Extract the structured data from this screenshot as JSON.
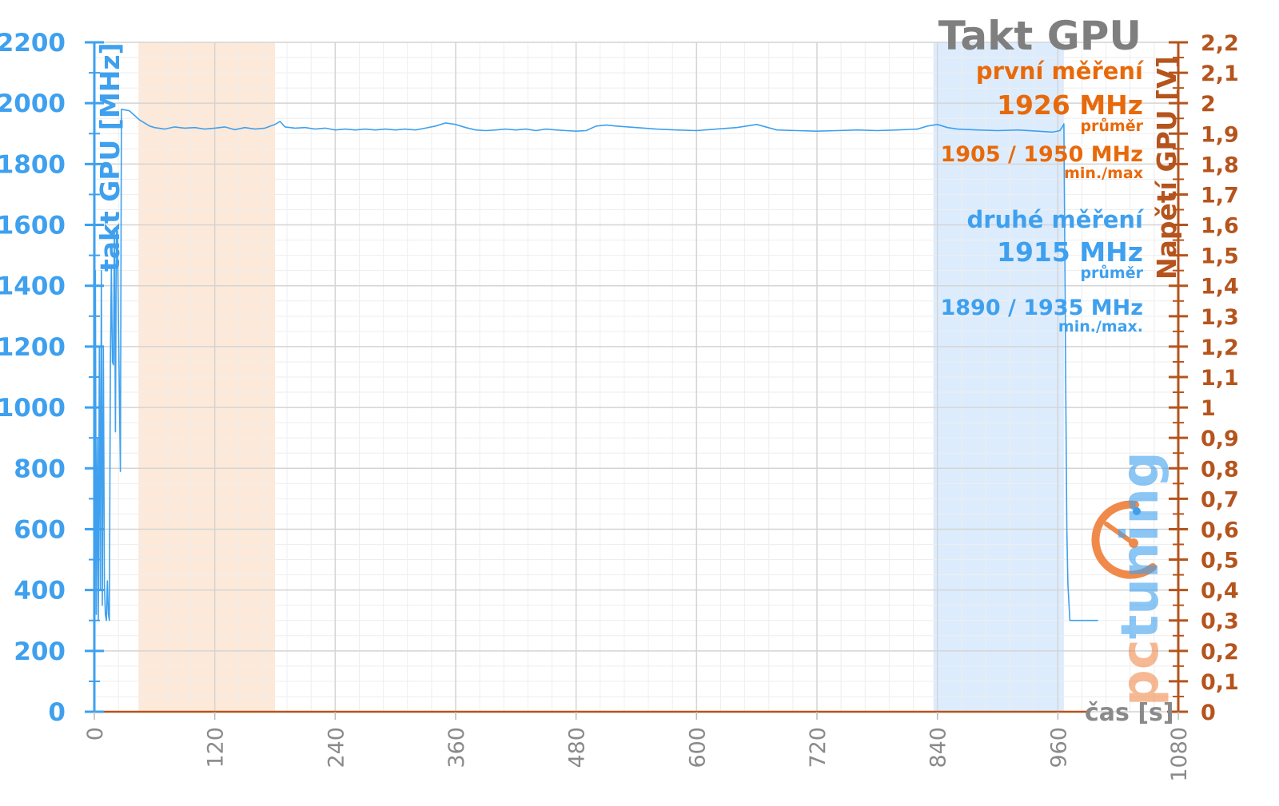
{
  "chart_data": {
    "type": "line",
    "title": "Takt GPU",
    "xlabel": "čas [s]",
    "ylabel": "takt GPU [MHz]",
    "y2label": "Napětí GPU [V]",
    "xlim": [
      0,
      1080
    ],
    "ylim": [
      0,
      2200
    ],
    "y2lim": [
      0,
      2.2
    ],
    "x_ticks": [
      "0",
      "120",
      "240",
      "360",
      "480",
      "600",
      "720",
      "840",
      "960",
      "1080"
    ],
    "y_ticks": [
      "0",
      "200",
      "400",
      "600",
      "800",
      "1000",
      "1200",
      "1400",
      "1600",
      "1800",
      "2000",
      "2200"
    ],
    "y2_ticks": [
      "0",
      "0,1",
      "0,2",
      "0,3",
      "0,4",
      "0,5",
      "0,6",
      "0,7",
      "0,8",
      "0,9",
      "1",
      "1,1",
      "1,2",
      "1,3",
      "1,4",
      "1,5",
      "1,6",
      "1,7",
      "1,8",
      "1,9",
      "2",
      "2,1",
      "2,2"
    ],
    "grid": true,
    "colors": {
      "clock": "#3ea0ee",
      "voltage": "#b5541c",
      "axis_left": "#3ea0ee",
      "axis_right": "#b5541c",
      "title": "#7f7f7f",
      "band_first": "#fde9d9",
      "band_second": "#dcecfd"
    },
    "bands": [
      {
        "series": "první měření",
        "x": [
          44,
          180
        ]
      },
      {
        "series": "druhé měření",
        "x": [
          836,
          966
        ]
      }
    ],
    "series": [
      {
        "type": "line",
        "points": [
          [
            0,
            300
          ],
          [
            1,
            1450
          ],
          [
            2,
            320
          ],
          [
            3,
            900
          ],
          [
            4,
            300
          ],
          [
            5,
            1200
          ],
          [
            6,
            400
          ],
          [
            7,
            1450
          ],
          [
            8,
            350
          ],
          [
            9,
            1200
          ],
          [
            10,
            420
          ],
          [
            11,
            320
          ],
          [
            12,
            300
          ],
          [
            13,
            430
          ],
          [
            14,
            320
          ],
          [
            15,
            300
          ],
          [
            16,
            1150
          ],
          [
            17,
            1460
          ],
          [
            18,
            1150
          ],
          [
            19,
            1140
          ],
          [
            20,
            1590
          ],
          [
            21,
            920
          ],
          [
            22,
            1580
          ],
          [
            23,
            1580
          ],
          [
            24,
            1300
          ],
          [
            26,
            790
          ],
          [
            27,
            1980
          ],
          [
            35,
            1975
          ],
          [
            40,
            1960
          ],
          [
            45,
            1945
          ],
          [
            50,
            1935
          ],
          [
            55,
            1925
          ],
          [
            60,
            1920
          ],
          [
            70,
            1915
          ],
          [
            80,
            1922
          ],
          [
            90,
            1918
          ],
          [
            100,
            1920
          ],
          [
            110,
            1915
          ],
          [
            120,
            1918
          ],
          [
            130,
            1922
          ],
          [
            140,
            1913
          ],
          [
            150,
            1920
          ],
          [
            160,
            1915
          ],
          [
            170,
            1918
          ],
          [
            180,
            1930
          ],
          [
            185,
            1940
          ],
          [
            190,
            1922
          ],
          [
            200,
            1918
          ],
          [
            210,
            1920
          ],
          [
            220,
            1915
          ],
          [
            230,
            1918
          ],
          [
            240,
            1912
          ],
          [
            250,
            1915
          ],
          [
            260,
            1912
          ],
          [
            270,
            1915
          ],
          [
            280,
            1912
          ],
          [
            290,
            1915
          ],
          [
            300,
            1912
          ],
          [
            310,
            1915
          ],
          [
            320,
            1912
          ],
          [
            330,
            1918
          ],
          [
            340,
            1925
          ],
          [
            350,
            1935
          ],
          [
            360,
            1930
          ],
          [
            370,
            1920
          ],
          [
            380,
            1912
          ],
          [
            390,
            1910
          ],
          [
            400,
            1912
          ],
          [
            410,
            1915
          ],
          [
            420,
            1912
          ],
          [
            430,
            1915
          ],
          [
            440,
            1910
          ],
          [
            450,
            1915
          ],
          [
            460,
            1912
          ],
          [
            470,
            1910
          ],
          [
            480,
            1908
          ],
          [
            490,
            1910
          ],
          [
            500,
            1925
          ],
          [
            510,
            1928
          ],
          [
            520,
            1925
          ],
          [
            540,
            1920
          ],
          [
            560,
            1915
          ],
          [
            580,
            1912
          ],
          [
            600,
            1910
          ],
          [
            620,
            1915
          ],
          [
            640,
            1920
          ],
          [
            660,
            1930
          ],
          [
            680,
            1912
          ],
          [
            700,
            1910
          ],
          [
            720,
            1908
          ],
          [
            740,
            1910
          ],
          [
            760,
            1912
          ],
          [
            780,
            1910
          ],
          [
            800,
            1912
          ],
          [
            820,
            1915
          ],
          [
            830,
            1925
          ],
          [
            840,
            1930
          ],
          [
            850,
            1920
          ],
          [
            860,
            1915
          ],
          [
            880,
            1912
          ],
          [
            900,
            1910
          ],
          [
            920,
            1912
          ],
          [
            940,
            1908
          ],
          [
            955,
            1905
          ],
          [
            962,
            1910
          ],
          [
            965,
            1925
          ],
          [
            966,
            1932
          ],
          [
            967,
            1500
          ],
          [
            968,
            1000
          ],
          [
            969,
            600
          ],
          [
            970,
            420
          ],
          [
            972,
            300
          ],
          [
            1000,
            300
          ]
        ]
      }
    ],
    "annotations": {
      "first": {
        "label": "první měření",
        "avg": "1926 MHz",
        "avg_label": "průměr",
        "minmax": "1905 / 1950 MHz",
        "minmax_label": "min./max"
      },
      "second": {
        "label": "druhé měření",
        "avg": "1915 MHz",
        "avg_label": "průměr",
        "minmax": "1890 / 1935 MHz",
        "minmax_label": "min./max."
      }
    },
    "logo_text": "pctuning"
  }
}
